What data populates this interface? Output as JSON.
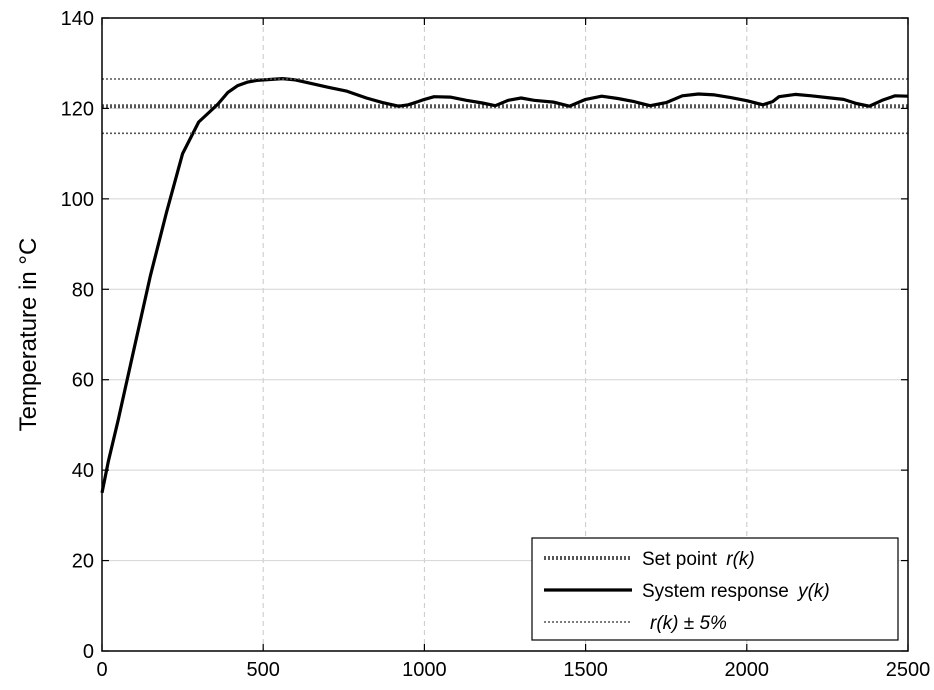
{
  "chart_data": {
    "type": "line",
    "title": "",
    "xlabel": "",
    "ylabel": "Temperature in °C",
    "xlim": [
      0,
      2500
    ],
    "ylim": [
      0,
      140
    ],
    "xticks": [
      0,
      500,
      1000,
      1500,
      2000,
      2500
    ],
    "xtick_labels": [
      "0",
      "500",
      "1000",
      "1500",
      "2000",
      "2500"
    ],
    "yticks": [
      0,
      20,
      40,
      60,
      80,
      100,
      120,
      140
    ],
    "ytick_labels": [
      "0",
      "20",
      "40",
      "60",
      "80",
      "100",
      "120",
      "140"
    ],
    "grid": true,
    "grid_style": "dashed vertical, solid horizontal",
    "legend_position": "bottom-right",
    "series": [
      {
        "id": "setpoint",
        "name": "Set point",
        "name_math": "r(k)",
        "style": "thick dotted",
        "color": "#555555",
        "x": [
          0,
          2500
        ],
        "y": [
          120.5,
          120.5
        ]
      },
      {
        "id": "response",
        "name": "System response",
        "name_math": "y(k)",
        "style": "thick solid",
        "color": "#000000",
        "x": [
          0,
          20,
          50,
          100,
          150,
          200,
          250,
          300,
          330,
          360,
          390,
          420,
          450,
          480,
          520,
          560,
          600,
          650,
          700,
          760,
          820,
          870,
          920,
          950,
          980,
          1000,
          1030,
          1080,
          1130,
          1180,
          1220,
          1260,
          1300,
          1340,
          1400,
          1450,
          1500,
          1550,
          1600,
          1650,
          1700,
          1750,
          1800,
          1850,
          1900,
          1950,
          2000,
          2050,
          2080,
          2100,
          2150,
          2200,
          2250,
          2300,
          2340,
          2380,
          2420,
          2460,
          2500
        ],
        "y": [
          35,
          42,
          51,
          67,
          83,
          97,
          110,
          117,
          119,
          121,
          123.5,
          125,
          125.8,
          126.2,
          126.4,
          126.6,
          126.3,
          125.5,
          124.7,
          123.8,
          122.3,
          121.3,
          120.5,
          120.8,
          121.5,
          122,
          122.6,
          122.5,
          121.8,
          121.2,
          120.6,
          121.8,
          122.3,
          121.8,
          121.4,
          120.5,
          122,
          122.7,
          122.2,
          121.5,
          120.6,
          121.3,
          122.8,
          123.2,
          123,
          122.4,
          121.7,
          120.8,
          121.5,
          122.6,
          123.1,
          122.8,
          122.4,
          122,
          121.1,
          120.5,
          121.8,
          122.8,
          122.7
        ]
      },
      {
        "id": "band-upper",
        "name": "r(k) ± 5%",
        "name_math": "r(k) ± 5%",
        "style": "thin dotted",
        "color": "#555555",
        "x": [
          0,
          2500
        ],
        "y": [
          126.5,
          126.5
        ]
      },
      {
        "id": "band-lower",
        "name": "r(k) ± 5%",
        "style": "thin dotted",
        "color": "#555555",
        "x": [
          0,
          2500
        ],
        "y": [
          114.5,
          114.5
        ]
      }
    ],
    "legend": [
      {
        "series": "setpoint",
        "label": "Set point",
        "label_math": "r(k)"
      },
      {
        "series": "response",
        "label": "System response",
        "label_math": "y(k)"
      },
      {
        "series": "band-upper",
        "label": "",
        "label_math": "r(k) ± 5%"
      }
    ]
  }
}
